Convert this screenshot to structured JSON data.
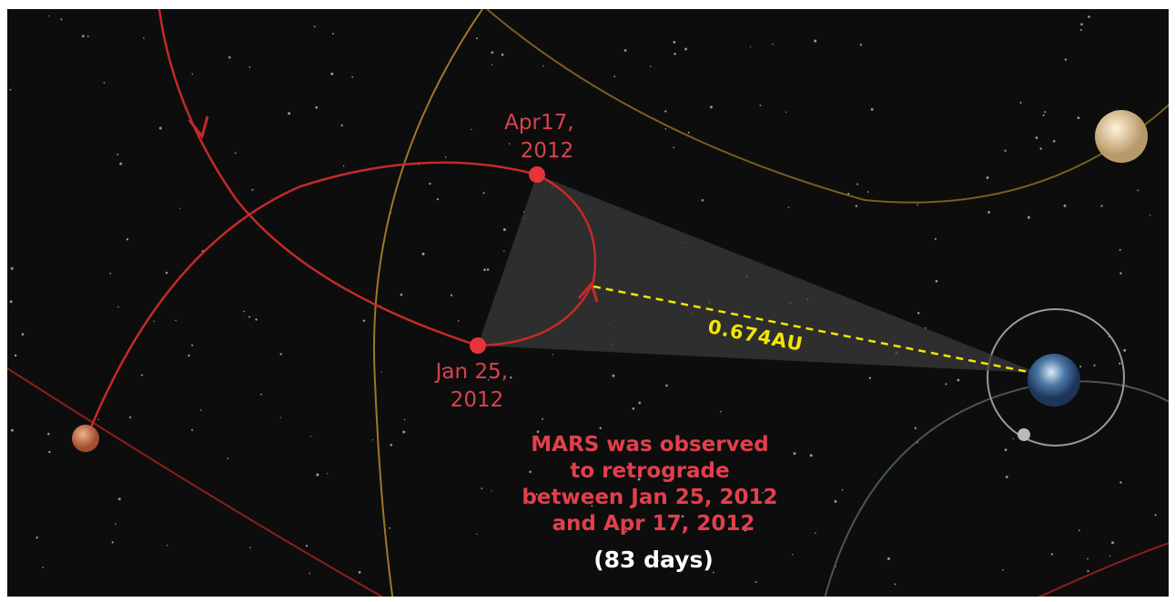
{
  "labels": {
    "apr17": [
      "Apr17,",
      "2012"
    ],
    "jan25": [
      "Jan 25,",
      "2012"
    ],
    "distance": "0.674AU"
  },
  "caption": {
    "lines": [
      "MARS was observed",
      "to retrograde",
      "between Jan 25, 2012",
      "and Apr 17, 2012"
    ],
    "duration": "(83 days)"
  }
}
